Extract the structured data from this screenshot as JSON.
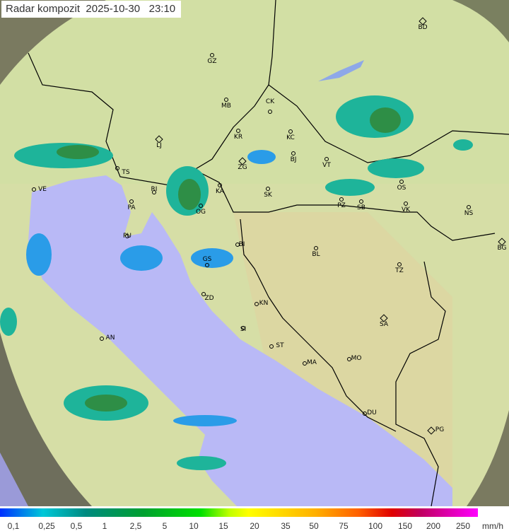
{
  "header": {
    "title": "Radar kompozit  2025-10-30   23:10"
  },
  "map": {
    "stations": [
      "GZ",
      "BD",
      "MB",
      "CK",
      "KR",
      "KC",
      "LJ",
      "BJ",
      "VT",
      "ZG",
      "TS",
      "VE",
      "KA",
      "SK",
      "OS",
      "PA",
      "RI",
      "OG",
      "PZ",
      "SB",
      "VK",
      "NS",
      "BG",
      "PU",
      "BL",
      "BI",
      "GS",
      "TZ",
      "ZD",
      "KN",
      "SA",
      "SI",
      "AN",
      "ST",
      "MA",
      "MO",
      "DU",
      "PG"
    ],
    "capitals": [
      "BD",
      "LJ",
      "ZG",
      "BG",
      "SA",
      "PG"
    ],
    "colors": {
      "sea": "#b9b9f6",
      "land": "#d8e0a8",
      "outside": "#6a6a58",
      "rain_light": "#2a9ce8",
      "rain_mid": "#1eb49a",
      "rain_heavy": "#2e8e46"
    }
  },
  "legend": {
    "labels": [
      "0,1",
      "0,25",
      "0,5",
      "1",
      "2,5",
      "5",
      "10",
      "15",
      "20",
      "35",
      "50",
      "75",
      "100",
      "150",
      "200",
      "250"
    ],
    "unit": "mm/h"
  }
}
